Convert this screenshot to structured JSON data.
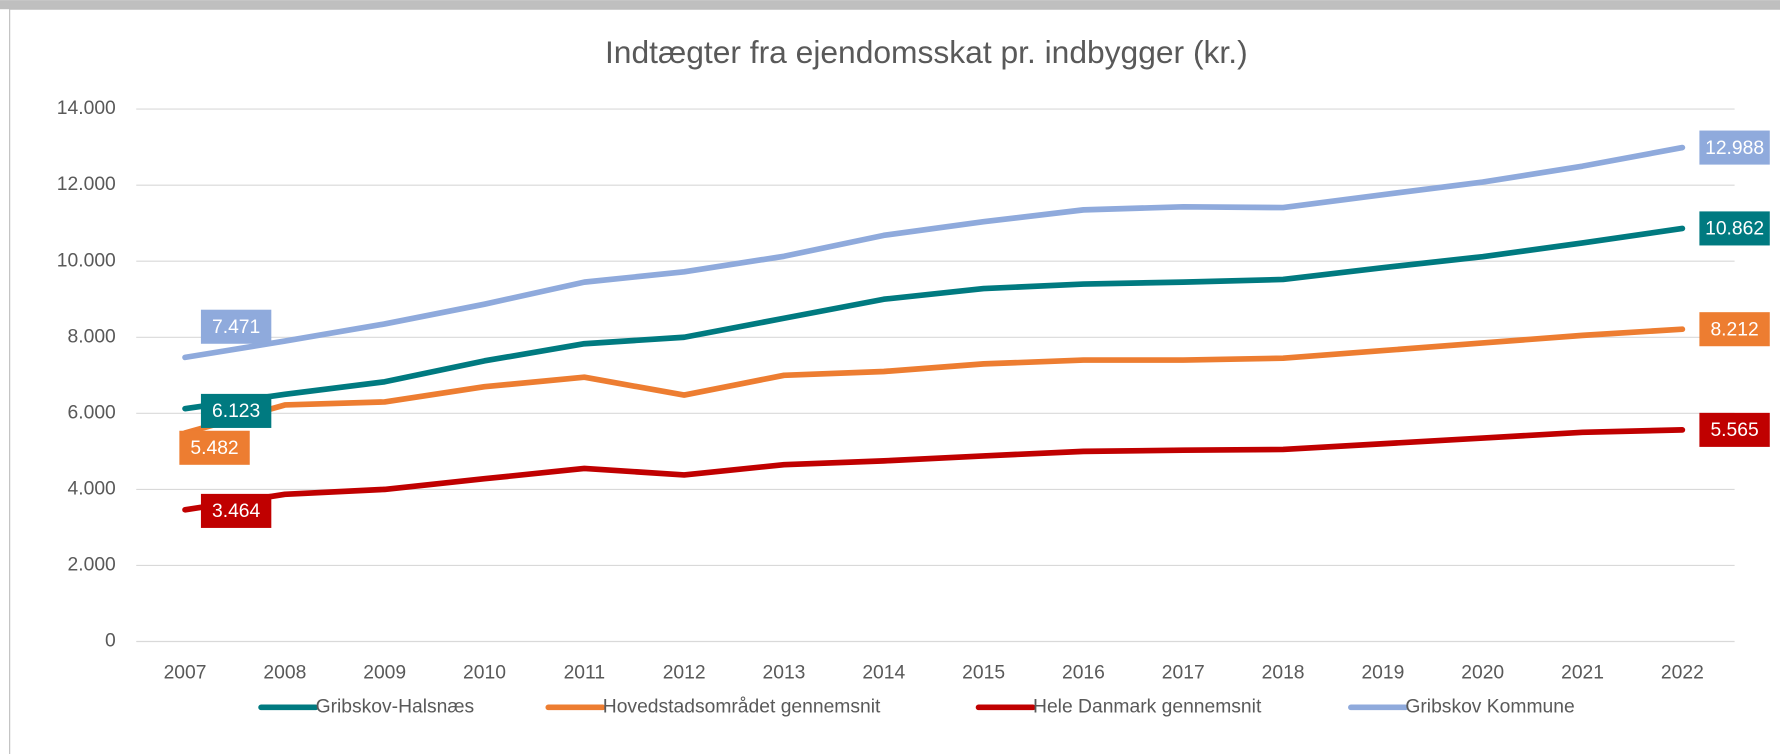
{
  "chart_data": {
    "type": "line",
    "title": "Indtægter fra ejendomsskat pr. indbygger (kr.)",
    "categories": [
      "2007",
      "2008",
      "2009",
      "2010",
      "2011",
      "2012",
      "2013",
      "2014",
      "2015",
      "2016",
      "2017",
      "2018",
      "2019",
      "2020",
      "2021",
      "2022"
    ],
    "series": [
      {
        "name": "Gribskov-Halsnæs",
        "color": "#007a80",
        "values": [
          6123,
          6500,
          6830,
          7380,
          7830,
          8000,
          8500,
          9000,
          9280,
          9400,
          9450,
          9520,
          9830,
          10120,
          10480,
          10862
        ],
        "value_labels": [
          "6.123",
          null,
          null,
          null,
          null,
          null,
          null,
          null,
          null,
          null,
          null,
          null,
          null,
          null,
          null,
          "10.862"
        ]
      },
      {
        "name": "Hovedstadsområdet gennemsnit",
        "color": "#ed7d31",
        "values": [
          5482,
          6220,
          6300,
          6700,
          6950,
          6480,
          7000,
          7100,
          7300,
          7400,
          7400,
          7450,
          7650,
          7850,
          8050,
          8212
        ],
        "value_labels": [
          "5.482",
          null,
          null,
          null,
          null,
          null,
          null,
          null,
          null,
          null,
          null,
          null,
          null,
          null,
          null,
          "8.212"
        ]
      },
      {
        "name": "Hele Danmark gennemsnit",
        "color": "#c00000",
        "values": [
          3464,
          3870,
          4000,
          4280,
          4550,
          4380,
          4650,
          4750,
          4880,
          5000,
          5030,
          5050,
          5200,
          5350,
          5500,
          5565
        ],
        "value_labels": [
          "3.464",
          null,
          null,
          null,
          null,
          null,
          null,
          null,
          null,
          null,
          null,
          null,
          null,
          null,
          null,
          "5.565"
        ]
      },
      {
        "name": "Gribskov Kommune",
        "color": "#8faadc",
        "values": [
          7471,
          7900,
          8350,
          8870,
          9450,
          9720,
          10130,
          10680,
          11040,
          11350,
          11430,
          11410,
          11750,
          12080,
          12500,
          12988
        ],
        "value_labels": [
          "7.471",
          null,
          null,
          null,
          null,
          null,
          null,
          null,
          null,
          null,
          null,
          null,
          null,
          null,
          null,
          "12.988"
        ]
      }
    ],
    "ylim": [
      0,
      14000
    ],
    "yticks": [
      0,
      {
        "value": 2000,
        "label": "2.000"
      },
      {
        "value": 4000,
        "label": "4.000"
      },
      {
        "value": 6000,
        "label": "6.000"
      },
      {
        "value": 8000,
        "label": "8.000"
      },
      {
        "value": 10000,
        "label": "10.000"
      },
      {
        "value": 12000,
        "label": "12.000"
      },
      {
        "value": 14000,
        "label": "14.000"
      }
    ],
    "grid": true,
    "legend": "bottom"
  }
}
